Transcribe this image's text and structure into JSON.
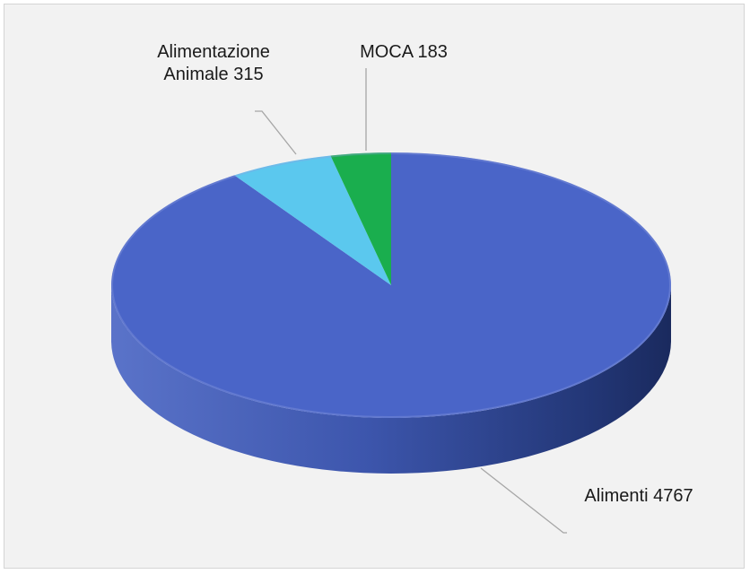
{
  "chart_data": {
    "type": "pie",
    "style": "3d",
    "title": "",
    "slices": [
      {
        "name": "Alimenti",
        "value": 4767,
        "label": "Alimenti 4767",
        "color": "#4a65c8"
      },
      {
        "name": "Alimentazione Animale",
        "value": 315,
        "label_line1": "Alimentazione",
        "label_line2": "Animale 315",
        "color": "#5bc8ee"
      },
      {
        "name": "MOCA",
        "value": 183,
        "label": "MOCA 183",
        "color": "#1aae4e"
      }
    ],
    "legend": "none"
  }
}
